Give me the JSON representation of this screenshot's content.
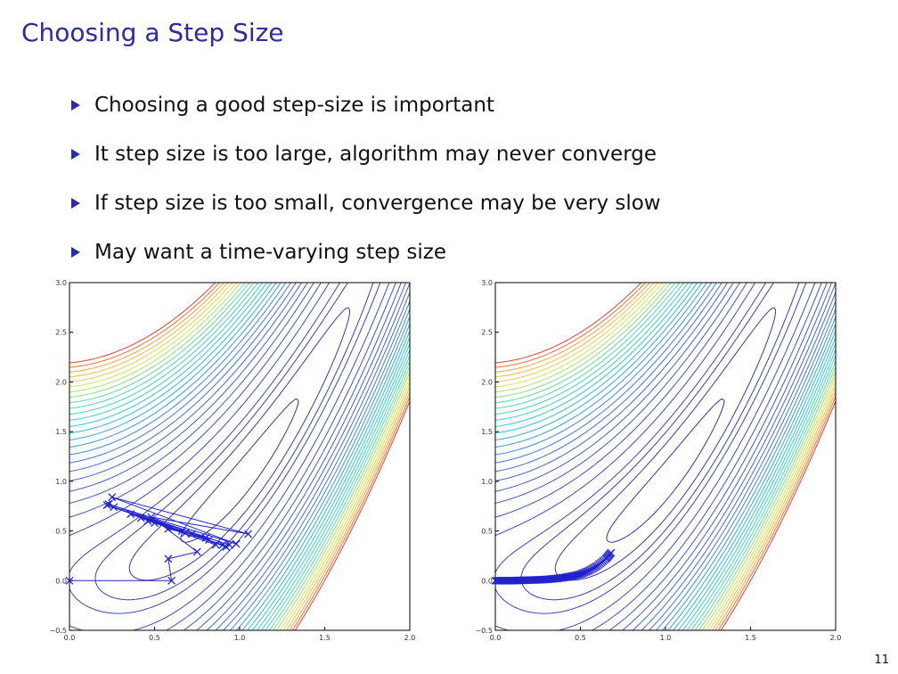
{
  "slide": {
    "title": "Choosing a Step Size",
    "bullets": [
      "Choosing a good step-size is important",
      "It step size is too large, algorithm may never converge",
      "If step size is too small, convergence may be very slow",
      "May want a time-varying step size"
    ],
    "page_number": "11"
  },
  "chart_data": [
    {
      "type": "contour",
      "x_ticks": [
        "0.0",
        "0.5",
        "1.0",
        "1.5",
        "2.0"
      ],
      "y_ticks": [
        "−0.5",
        "0.0",
        "0.5",
        "1.0",
        "1.5",
        "2.0",
        "2.5",
        "3.0"
      ],
      "xlim": [
        0,
        2
      ],
      "ylim": [
        -0.5,
        3
      ],
      "path_color": "#2222cc",
      "path": [
        [
          0,
          0
        ],
        [
          0.6,
          0
        ],
        [
          0.58,
          0.22
        ],
        [
          0.75,
          0.29
        ],
        [
          0.48,
          0.64
        ],
        [
          1.05,
          0.47
        ],
        [
          0.25,
          0.84
        ],
        [
          0.98,
          0.37
        ],
        [
          0.23,
          0.77
        ],
        [
          0.94,
          0.36
        ],
        [
          0.22,
          0.76
        ],
        [
          0.92,
          0.34
        ],
        [
          0.26,
          0.74
        ],
        [
          0.9,
          0.36
        ],
        [
          0.36,
          0.67
        ],
        [
          0.86,
          0.36
        ],
        [
          0.42,
          0.63
        ],
        [
          0.82,
          0.41
        ],
        [
          0.46,
          0.6
        ],
        [
          0.8,
          0.43
        ],
        [
          0.5,
          0.58
        ],
        [
          0.68,
          0.48
        ],
        [
          0.58,
          0.52
        ],
        [
          0.72,
          0.47
        ],
        [
          0.66,
          0.5
        ]
      ]
    },
    {
      "type": "contour",
      "x_ticks": [
        "0.0",
        "0.5",
        "1.0",
        "1.5",
        "2.0"
      ],
      "y_ticks": [
        "−0.5",
        "0.0",
        "0.5",
        "1.0",
        "1.5",
        "2.0",
        "2.5",
        "3.0"
      ],
      "xlim": [
        0,
        2
      ],
      "ylim": [
        -0.5,
        3
      ],
      "path_color": "#2222cc",
      "path_summary": "dense sequence of small steps",
      "path": [
        [
          0,
          0
        ],
        [
          0.05,
          0
        ],
        [
          0.1,
          0
        ],
        [
          0.15,
          0.003
        ],
        [
          0.2,
          0.005
        ],
        [
          0.25,
          0.008
        ],
        [
          0.3,
          0.012
        ],
        [
          0.35,
          0.02
        ],
        [
          0.4,
          0.03
        ],
        [
          0.45,
          0.045
        ],
        [
          0.5,
          0.065
        ],
        [
          0.55,
          0.1
        ],
        [
          0.6,
          0.15
        ],
        [
          0.65,
          0.22
        ],
        [
          0.68,
          0.28
        ]
      ]
    }
  ]
}
